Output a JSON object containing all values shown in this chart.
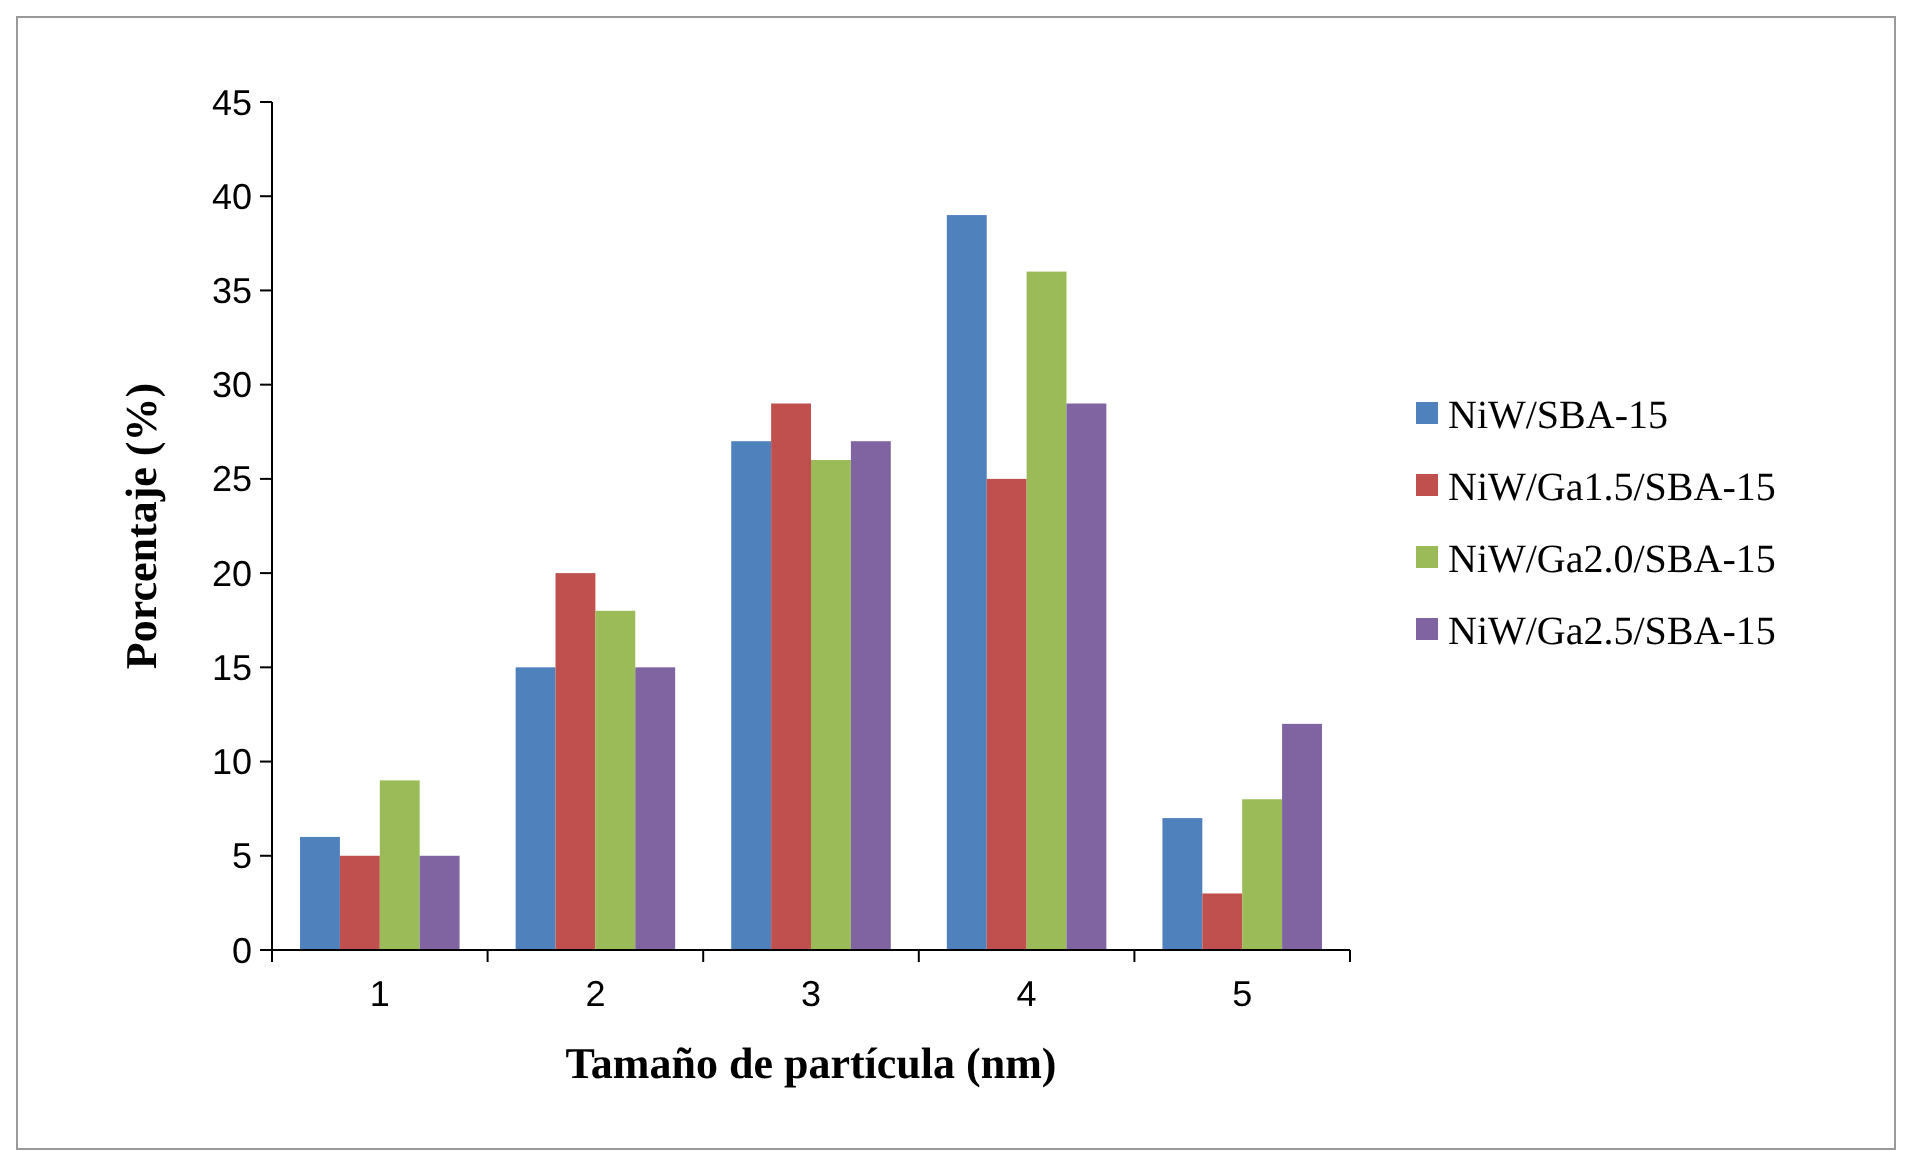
{
  "chart_data": {
    "type": "bar",
    "xlabel": "Tamaño de partícula (nm)",
    "ylabel": "Porcentaje (%)",
    "categories": [
      "1",
      "2",
      "3",
      "4",
      "5"
    ],
    "series": [
      {
        "name": "NiW/SBA-15",
        "color": "#4f81bd",
        "values": [
          6,
          15,
          27,
          39,
          7
        ]
      },
      {
        "name": "NiW/Ga1.5/SBA-15",
        "color": "#c0504d",
        "values": [
          5,
          20,
          29,
          25,
          3
        ]
      },
      {
        "name": "NiW/Ga2.0/SBA-15",
        "color": "#9bbb59",
        "values": [
          9,
          18,
          26,
          36,
          8
        ]
      },
      {
        "name": "NiW/Ga2.5/SBA-15",
        "color": "#8064a2",
        "values": [
          5,
          15,
          27,
          29,
          12
        ]
      }
    ],
    "ylim": [
      0,
      45
    ],
    "yticks": [
      0,
      5,
      10,
      15,
      20,
      25,
      30,
      35,
      40,
      45
    ],
    "grid": false,
    "legend": "right"
  }
}
